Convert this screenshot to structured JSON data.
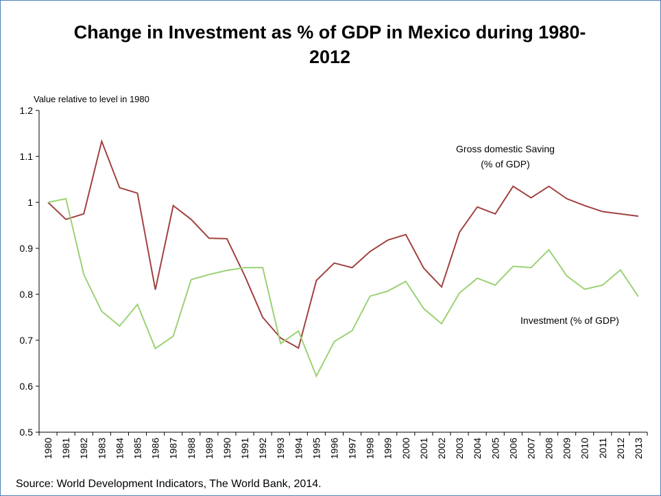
{
  "chart_data": {
    "type": "line",
    "title": "Change in Investment as % of GDP in Mexico during 1980-2012",
    "y_label": "Value relative to level in 1980",
    "source": "Source: World Development Indicators, The World Bank, 2014.",
    "categories": [
      "1980",
      "1981",
      "1982",
      "1983",
      "1984",
      "1985",
      "1986",
      "1987",
      "1988",
      "1989",
      "1990",
      "1991",
      "1992",
      "1993",
      "1994",
      "1995",
      "1996",
      "1997",
      "1998",
      "1999",
      "2000",
      "2001",
      "2002",
      "2003",
      "2004",
      "2005",
      "2006",
      "2007",
      "2008",
      "2009",
      "2010",
      "2011",
      "2012",
      "2013"
    ],
    "series": [
      {
        "name": "Gross domestic Saving (% of GDP)",
        "color": "#a0403e",
        "values": [
          1.0,
          0.963,
          0.975,
          1.133,
          1.032,
          1.02,
          0.81,
          0.993,
          0.963,
          0.922,
          0.921,
          0.84,
          0.75,
          0.705,
          0.683,
          0.83,
          0.868,
          0.858,
          0.893,
          0.918,
          0.93,
          0.857,
          0.816,
          0.935,
          0.99,
          0.975,
          1.035,
          1.01,
          1.035,
          1.008,
          0.993,
          0.98,
          0.975,
          0.97
        ]
      },
      {
        "name": "Investment (% of GDP)",
        "color": "#9bd174",
        "values": [
          1.0,
          1.008,
          0.843,
          0.763,
          0.731,
          0.778,
          0.682,
          0.709,
          0.832,
          0.843,
          0.852,
          0.858,
          0.858,
          0.693,
          0.72,
          0.622,
          0.697,
          0.721,
          0.796,
          0.807,
          0.828,
          0.769,
          0.736,
          0.803,
          0.835,
          0.82,
          0.861,
          0.858,
          0.897,
          0.84,
          0.811,
          0.82,
          0.853,
          0.795
        ]
      }
    ],
    "ylim": [
      0.5,
      1.2
    ],
    "yticks": [
      0.5,
      0.6,
      0.7,
      0.8,
      0.9,
      1,
      1.1,
      1.2
    ],
    "grid": false
  }
}
